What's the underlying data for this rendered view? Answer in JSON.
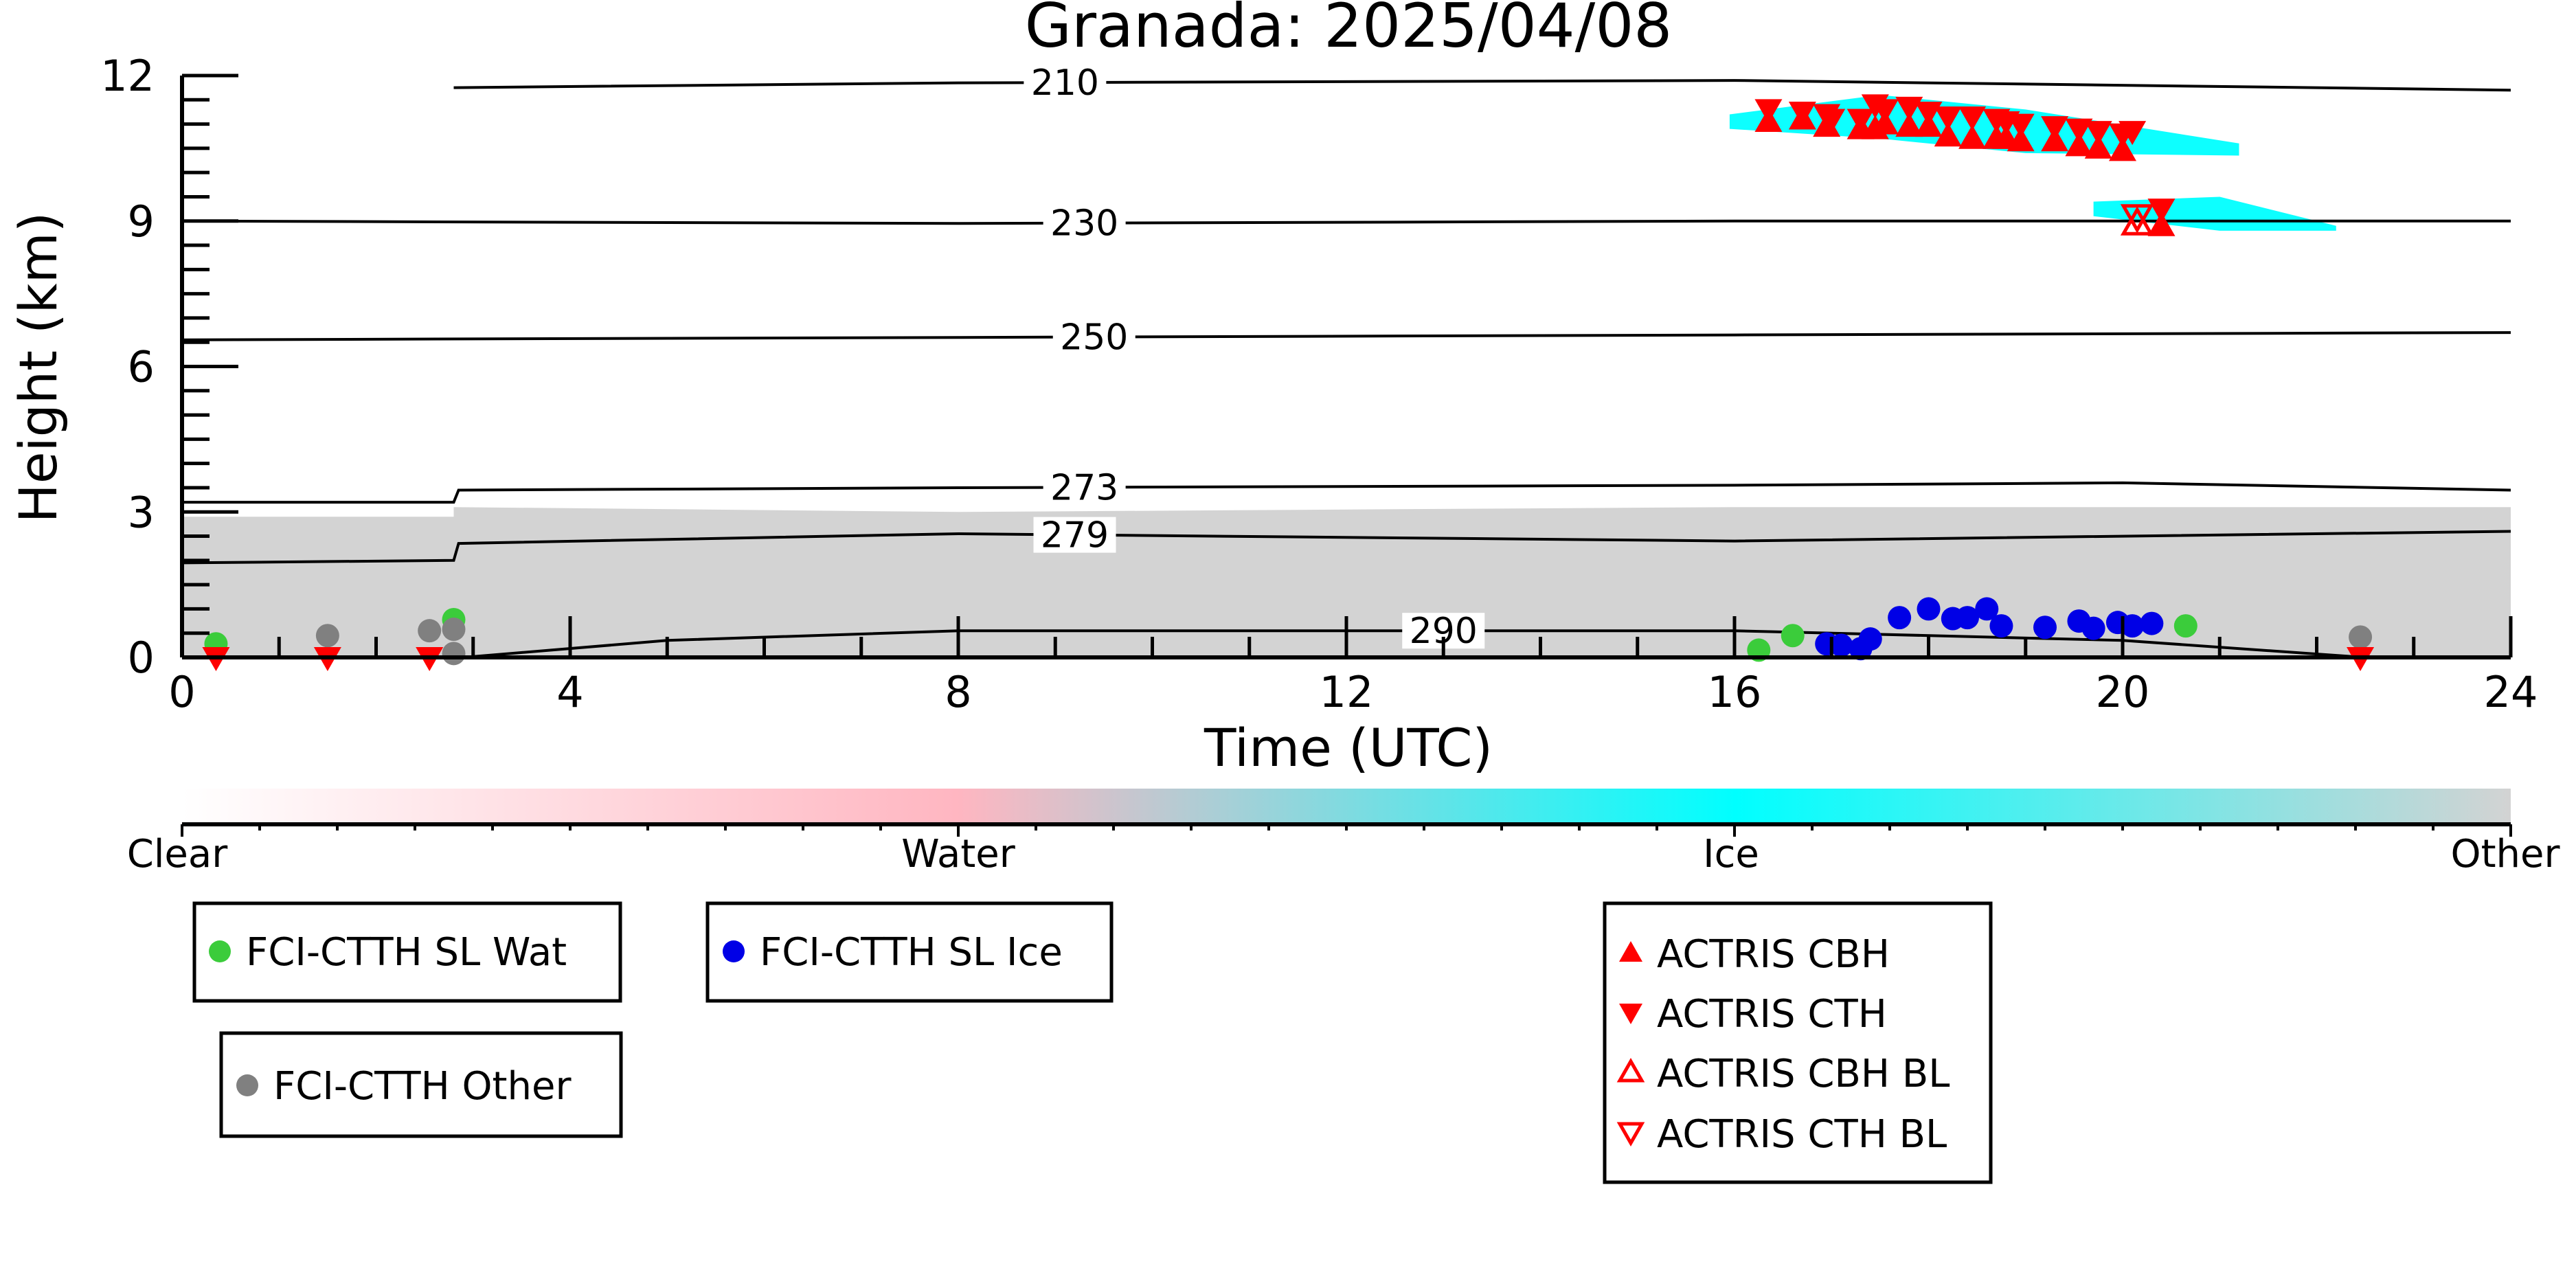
{
  "chart_data": {
    "type": "scatter",
    "title": "Granada: 2025/04/08",
    "xlabel": "Time (UTC)",
    "ylabel": "Height (km)",
    "xlim": [
      0,
      24
    ],
    "ylim": [
      0,
      12
    ],
    "x_ticks": [
      "0",
      "4",
      "8",
      "12",
      "16",
      "20",
      "24"
    ],
    "y_ticks": [
      "0",
      "3",
      "6",
      "9",
      "12"
    ],
    "colorbar": {
      "labels": [
        "Clear",
        "Water",
        "Ice",
        "Other"
      ],
      "colors": {
        "clear": "#ffffff",
        "water": "#ffb6c1",
        "ice": "#00ffff",
        "other": "#d3d3d3"
      }
    },
    "cloud_regions": [
      {
        "class": "other",
        "color": "#d3d3d3",
        "x_start": 0,
        "x_end": 24,
        "top_km": [
          [
            0,
            2.9
          ],
          [
            2.8,
            2.9
          ],
          [
            2.8,
            3.1
          ],
          [
            8,
            3.0
          ],
          [
            16,
            3.1
          ],
          [
            24,
            3.1
          ]
        ]
      },
      {
        "class": "ice",
        "color": "#00ffff",
        "x_start": 15.95,
        "x_end": 21.2,
        "top_km": [
          [
            15.95,
            11.2
          ],
          [
            17.5,
            11.6
          ],
          [
            19,
            11.3
          ],
          [
            21.2,
            10.6
          ]
        ],
        "bottom_km": [
          [
            15.95,
            10.9
          ],
          [
            17.5,
            10.7
          ],
          [
            19,
            10.4
          ],
          [
            21.2,
            10.35
          ]
        ]
      },
      {
        "class": "ice",
        "color": "#00ffff",
        "x_start": 19.7,
        "x_end": 22.2,
        "top_km": [
          [
            19.7,
            9.4
          ],
          [
            21,
            9.5
          ],
          [
            22.2,
            8.9
          ]
        ],
        "bottom_km": [
          [
            19.7,
            9.1
          ],
          [
            21,
            8.8
          ],
          [
            22.2,
            8.8
          ]
        ]
      }
    ],
    "isotherms": [
      {
        "label": "210",
        "points": [
          [
            2.8,
            11.75
          ],
          [
            8,
            11.85
          ],
          [
            16,
            11.9
          ],
          [
            24,
            11.7
          ]
        ],
        "label_x": 9.1
      },
      {
        "label": "230",
        "points": [
          [
            0,
            9.0
          ],
          [
            8,
            8.95
          ],
          [
            16,
            9.0
          ],
          [
            24,
            9.0
          ]
        ],
        "label_x": 9.3
      },
      {
        "label": "250",
        "points": [
          [
            0,
            6.55
          ],
          [
            8,
            6.6
          ],
          [
            16,
            6.65
          ],
          [
            24,
            6.7
          ]
        ],
        "label_x": 9.4
      },
      {
        "label": "273",
        "points": [
          [
            0,
            3.2
          ],
          [
            2.8,
            3.2
          ],
          [
            2.85,
            3.45
          ],
          [
            8,
            3.5
          ],
          [
            16,
            3.55
          ],
          [
            20,
            3.6
          ],
          [
            24,
            3.45
          ]
        ],
        "label_x": 9.3
      },
      {
        "label": "279",
        "points": [
          [
            0,
            1.95
          ],
          [
            2.8,
            2.0
          ],
          [
            2.85,
            2.35
          ],
          [
            8,
            2.55
          ],
          [
            16,
            2.4
          ],
          [
            24,
            2.6
          ]
        ],
        "label_x": 9.2
      },
      {
        "label": "290",
        "points": [
          [
            2.9,
            0.0
          ],
          [
            5,
            0.35
          ],
          [
            8,
            0.55
          ],
          [
            12,
            0.55
          ],
          [
            16,
            0.55
          ],
          [
            20,
            0.35
          ],
          [
            22.5,
            0.0
          ]
        ],
        "label_x": 13.0
      }
    ],
    "series": [
      {
        "name": "FCI-CTTH SL Wat",
        "marker": "circle",
        "color": "#3bcc3b",
        "x": [
          0.35,
          2.8,
          16.25,
          16.6,
          20.65
        ],
        "y": [
          0.28,
          0.78,
          0.15,
          0.45,
          0.65
        ]
      },
      {
        "name": "FCI-CTTH SL Ice",
        "marker": "circle",
        "color": "#0000e6",
        "x": [
          16.95,
          17.1,
          17.3,
          17.4,
          17.7,
          18.0,
          18.25,
          18.4,
          18.6,
          18.75,
          19.2,
          19.55,
          19.7,
          19.95,
          20.1,
          20.3
        ],
        "y": [
          0.28,
          0.25,
          0.18,
          0.38,
          0.82,
          1.0,
          0.8,
          0.82,
          1.0,
          0.65,
          0.62,
          0.75,
          0.6,
          0.72,
          0.65,
          0.7
        ]
      },
      {
        "name": "FCI-CTTH Other",
        "marker": "circle",
        "color": "#808080",
        "x": [
          1.5,
          2.55,
          2.8,
          2.8,
          22.45
        ],
        "y": [
          0.45,
          0.55,
          0.58,
          0.08,
          0.42
        ]
      },
      {
        "name": "ACTRIS CBH",
        "marker": "triangle-up",
        "color": "#ff0000",
        "x": [
          16.35,
          16.7,
          16.95,
          17.3,
          17.45,
          17.55,
          17.8,
          18.0,
          18.2,
          18.45,
          18.7,
          18.8,
          18.95,
          19.3,
          19.55,
          19.75,
          20.0,
          20.4
        ],
        "y": [
          11.05,
          11.1,
          10.95,
          10.9,
          10.9,
          11.0,
          10.95,
          10.95,
          10.75,
          10.7,
          10.7,
          10.7,
          10.65,
          10.65,
          10.55,
          10.5,
          10.45,
          8.9
        ],
        "note_bl": false
      },
      {
        "name": "ACTRIS CTH",
        "marker": "triangle-down",
        "color": "#ff0000",
        "x": [
          0.35,
          1.5,
          2.55,
          16.35,
          16.7,
          16.95,
          17.0,
          17.3,
          17.45,
          17.55,
          17.8,
          18.0,
          18.2,
          18.45,
          18.7,
          18.8,
          18.95,
          19.3,
          19.55,
          19.75,
          20.0,
          20.1,
          20.4,
          22.45
        ],
        "y": [
          0.0,
          0.0,
          0.0,
          11.3,
          11.25,
          11.2,
          11.1,
          11.1,
          11.4,
          11.3,
          11.35,
          11.25,
          11.15,
          11.15,
          11.1,
          11.05,
          11.0,
          10.95,
          10.9,
          10.85,
          10.8,
          10.85,
          9.25,
          0.0
        ]
      },
      {
        "name": "ACTRIS CBH BL",
        "marker": "triangle-up-open",
        "color": "#ff0000",
        "x": [
          20.15
        ],
        "y": [
          8.95
        ]
      },
      {
        "name": "ACTRIS CTH BL",
        "marker": "triangle-down-open",
        "color": "#ff0000",
        "x": [
          20.15
        ],
        "y": [
          9.1
        ]
      }
    ],
    "legends": [
      {
        "entries": [
          "FCI-CTTH SL Wat"
        ]
      },
      {
        "entries": [
          "FCI-CTTH SL Ice"
        ]
      },
      {
        "entries": [
          "FCI-CTTH Other"
        ]
      },
      {
        "entries": [
          "ACTRIS CBH",
          "ACTRIS CTH",
          "ACTRIS CBH BL",
          "ACTRIS CTH BL"
        ]
      }
    ],
    "grid": false
  }
}
